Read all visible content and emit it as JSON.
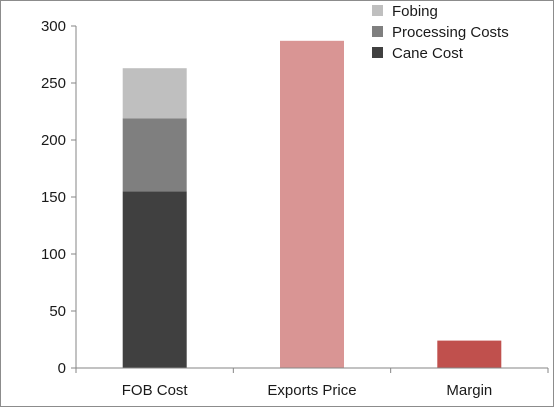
{
  "chart_data": {
    "type": "bar",
    "stacked": true,
    "categories": [
      "FOB Cost",
      "Exports Price",
      "Margin"
    ],
    "series": [
      {
        "name": "Cane Cost",
        "values": [
          155,
          null,
          null
        ],
        "color": "#404040"
      },
      {
        "name": "Processing Costs",
        "values": [
          64,
          null,
          null
        ],
        "color": "#7f7f7f"
      },
      {
        "name": "Fobing",
        "values": [
          44,
          null,
          null
        ],
        "color": "#bfbfbf"
      },
      {
        "name": "",
        "values": [
          null,
          287,
          null
        ],
        "color": "#d99594"
      },
      {
        "name": "",
        "values": [
          null,
          null,
          24
        ],
        "color": "#c0504d"
      }
    ],
    "legend_entries": [
      "Fobing",
      "Processing Costs",
      "Cane Cost"
    ],
    "legend_colors": [
      "#bfbfbf",
      "#7f7f7f",
      "#404040"
    ],
    "yticks": [
      0,
      50,
      100,
      150,
      200,
      250,
      300
    ],
    "ylim": [
      0,
      300
    ],
    "legend_position": "top-right",
    "grid": false,
    "title": "",
    "xlabel": "",
    "ylabel": ""
  }
}
